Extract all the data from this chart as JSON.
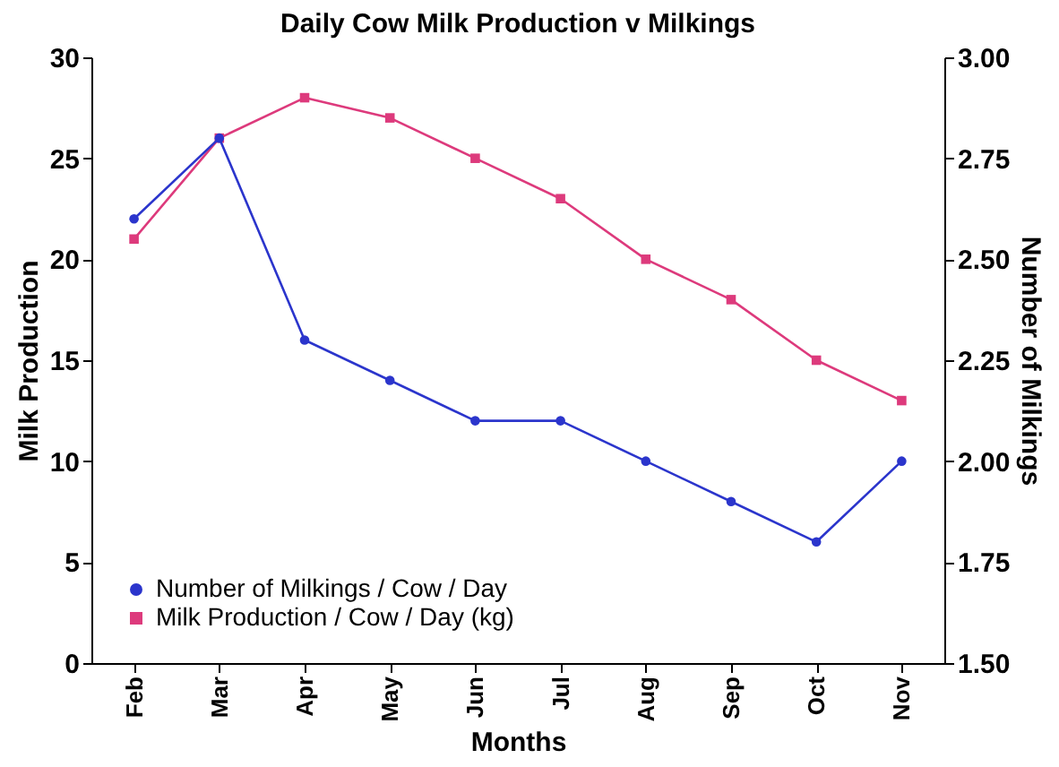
{
  "chart_data": {
    "type": "line",
    "title": "Daily Cow Milk Production v Milkings",
    "xlabel": "Months",
    "ylabel": "Milk Production",
    "y2label": "Number of Milkings",
    "categories": [
      "Feb",
      "Mar",
      "Apr",
      "May",
      "Jun",
      "Jul",
      "Aug",
      "Sep",
      "Oct",
      "Nov"
    ],
    "series": [
      {
        "name": "Number of Milkings / Cow / Day",
        "color": "#2b35cc",
        "axis": "y2",
        "marker": "circle",
        "values": [
          2.6,
          2.8,
          2.3,
          2.2,
          2.1,
          2.1,
          2.0,
          1.9,
          1.8,
          2.0
        ]
      },
      {
        "name": "Milk Production / Cow / Day (kg)",
        "color": "#dd3a7c",
        "marker": "square",
        "values": [
          21,
          26,
          28,
          27,
          25,
          23,
          20,
          18,
          15,
          13
        ]
      }
    ],
    "ylim": [
      0,
      30
    ],
    "yticks": [
      0,
      5,
      10,
      15,
      20,
      25,
      30
    ],
    "y2lim": [
      1.5,
      3.0
    ],
    "y2ticks": [
      {
        "value": 1.5,
        "label": "1.50"
      },
      {
        "value": 1.75,
        "label": "1.75"
      },
      {
        "value": 2.0,
        "label": "2.00"
      },
      {
        "value": 2.25,
        "label": "2.25"
      },
      {
        "value": 2.5,
        "label": "2.50"
      },
      {
        "value": 2.75,
        "label": "2.75"
      },
      {
        "value": 3.0,
        "label": "3.00"
      }
    ],
    "legend": "bottom left",
    "grid": false
  }
}
